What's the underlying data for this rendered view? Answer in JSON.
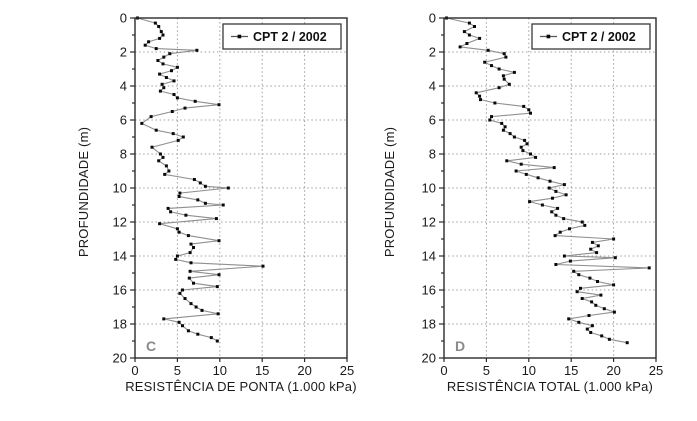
{
  "figure": {
    "background": "#ffffff",
    "description_visible_panels": [
      "C",
      "D"
    ]
  },
  "chart_data": [
    {
      "type": "line",
      "panel_label": "C",
      "legend": [
        "CPT 2 / 2002"
      ],
      "legend_position": "top-right",
      "xlabel": "RESISTÊNCIA DE PONTA (1.000 kPa)",
      "ylabel": "PROFUNDIDADE (m)",
      "xlim": [
        0,
        25
      ],
      "ylim_depth": [
        0,
        20
      ],
      "x_ticks": [
        0,
        5,
        10,
        15,
        20,
        25
      ],
      "y_ticks": [
        0,
        2,
        4,
        6,
        8,
        10,
        12,
        14,
        16,
        18,
        20
      ],
      "y_minor_ticks": [
        1,
        3,
        5,
        7,
        9,
        11,
        13,
        15,
        17,
        19
      ],
      "grid": true,
      "orientation": "depth profile, y axis inverted (0 at top)",
      "colors": {
        "line": "#8f8f8f",
        "marker": "#0a0a0a",
        "grid": "#9f9f9f",
        "axis": "#2b2b2b",
        "panel_label": "#8a8a8a"
      },
      "series": [
        {
          "name": "CPT 2 / 2002",
          "points_depth_value": [
            [
              0.0,
              0.3
            ],
            [
              0.3,
              2.4
            ],
            [
              0.5,
              2.8
            ],
            [
              0.8,
              3.1
            ],
            [
              1.0,
              3.3
            ],
            [
              1.2,
              2.9
            ],
            [
              1.4,
              1.6
            ],
            [
              1.6,
              1.2
            ],
            [
              1.8,
              2.5
            ],
            [
              1.9,
              7.3
            ],
            [
              2.1,
              4.1
            ],
            [
              2.3,
              3.4
            ],
            [
              2.5,
              2.7
            ],
            [
              2.7,
              3.3
            ],
            [
              2.9,
              5.0
            ],
            [
              3.1,
              4.3
            ],
            [
              3.3,
              2.9
            ],
            [
              3.5,
              3.7
            ],
            [
              3.7,
              4.6
            ],
            [
              3.9,
              3.2
            ],
            [
              4.1,
              3.4
            ],
            [
              4.3,
              3.0
            ],
            [
              4.5,
              4.6
            ],
            [
              4.7,
              5.0
            ],
            [
              4.9,
              7.1
            ],
            [
              5.1,
              9.9
            ],
            [
              5.3,
              5.9
            ],
            [
              5.5,
              4.4
            ],
            [
              5.8,
              1.9
            ],
            [
              6.2,
              0.8
            ],
            [
              6.6,
              2.5
            ],
            [
              6.8,
              4.5
            ],
            [
              7.0,
              5.7
            ],
            [
              7.2,
              5.1
            ],
            [
              7.6,
              2.0
            ],
            [
              8.0,
              3.0
            ],
            [
              8.2,
              3.3
            ],
            [
              8.4,
              2.8
            ],
            [
              8.7,
              3.7
            ],
            [
              9.0,
              4.0
            ],
            [
              9.2,
              3.5
            ],
            [
              9.5,
              7.0
            ],
            [
              9.7,
              7.7
            ],
            [
              9.9,
              8.3
            ],
            [
              10.0,
              11.0
            ],
            [
              10.3,
              5.3
            ],
            [
              10.5,
              5.2
            ],
            [
              10.7,
              7.4
            ],
            [
              10.9,
              8.3
            ],
            [
              11.0,
              10.4
            ],
            [
              11.2,
              3.9
            ],
            [
              11.4,
              4.2
            ],
            [
              11.6,
              6.0
            ],
            [
              11.8,
              9.6
            ],
            [
              12.1,
              2.9
            ],
            [
              12.4,
              5.0
            ],
            [
              12.6,
              5.2
            ],
            [
              12.8,
              6.3
            ],
            [
              13.1,
              9.9
            ],
            [
              13.3,
              6.6
            ],
            [
              13.5,
              6.9
            ],
            [
              13.8,
              6.5
            ],
            [
              14.0,
              5.0
            ],
            [
              14.2,
              4.8
            ],
            [
              14.4,
              6.6
            ],
            [
              14.6,
              15.1
            ],
            [
              14.9,
              6.5
            ],
            [
              15.1,
              9.9
            ],
            [
              15.3,
              6.4
            ],
            [
              15.6,
              6.9
            ],
            [
              15.8,
              9.7
            ],
            [
              16.0,
              5.6
            ],
            [
              16.2,
              5.3
            ],
            [
              16.5,
              5.9
            ],
            [
              16.8,
              6.6
            ],
            [
              17.0,
              7.2
            ],
            [
              17.2,
              7.9
            ],
            [
              17.4,
              9.8
            ],
            [
              17.7,
              3.4
            ],
            [
              17.9,
              5.2
            ],
            [
              18.1,
              5.6
            ],
            [
              18.4,
              6.3
            ],
            [
              18.6,
              7.4
            ],
            [
              18.8,
              9.0
            ],
            [
              19.0,
              9.7
            ]
          ]
        }
      ]
    },
    {
      "type": "line",
      "panel_label": "D",
      "legend": [
        "CPT 2 / 2002"
      ],
      "legend_position": "top-right",
      "xlabel": "RESISTÊNCIA TOTAL (1.000 kPa)",
      "ylabel": "PROFUNDIDADE (m)",
      "xlim": [
        0,
        25
      ],
      "ylim_depth": [
        0,
        20
      ],
      "x_ticks": [
        0,
        5,
        10,
        15,
        20,
        25
      ],
      "y_ticks": [
        0,
        2,
        4,
        6,
        8,
        10,
        12,
        14,
        16,
        18,
        20
      ],
      "y_minor_ticks": [
        1,
        3,
        5,
        7,
        9,
        11,
        13,
        15,
        17,
        19
      ],
      "grid": true,
      "orientation": "depth profile, y axis inverted (0 at top)",
      "colors": {
        "line": "#8f8f8f",
        "marker": "#0a0a0a",
        "grid": "#9f9f9f",
        "axis": "#2b2b2b",
        "panel_label": "#8a8a8a"
      },
      "series": [
        {
          "name": "CPT 2 / 2002",
          "points_depth_value": [
            [
              0.0,
              0.3
            ],
            [
              0.3,
              3.0
            ],
            [
              0.5,
              3.6
            ],
            [
              0.8,
              2.4
            ],
            [
              1.0,
              3.0
            ],
            [
              1.2,
              4.2
            ],
            [
              1.5,
              2.7
            ],
            [
              1.7,
              1.9
            ],
            [
              1.9,
              5.2
            ],
            [
              2.1,
              7.1
            ],
            [
              2.3,
              7.3
            ],
            [
              2.6,
              4.8
            ],
            [
              2.8,
              5.6
            ],
            [
              3.0,
              6.5
            ],
            [
              3.2,
              8.3
            ],
            [
              3.4,
              7.0
            ],
            [
              3.6,
              7.1
            ],
            [
              3.9,
              7.7
            ],
            [
              4.1,
              6.5
            ],
            [
              4.4,
              3.8
            ],
            [
              4.6,
              4.2
            ],
            [
              4.8,
              4.3
            ],
            [
              5.0,
              6.0
            ],
            [
              5.2,
              9.4
            ],
            [
              5.4,
              10.0
            ],
            [
              5.6,
              10.2
            ],
            [
              5.8,
              5.6
            ],
            [
              6.0,
              5.4
            ],
            [
              6.2,
              6.8
            ],
            [
              6.4,
              7.2
            ],
            [
              6.6,
              7.0
            ],
            [
              6.8,
              7.8
            ],
            [
              7.0,
              8.3
            ],
            [
              7.2,
              9.5
            ],
            [
              7.4,
              9.8
            ],
            [
              7.6,
              9.1
            ],
            [
              7.8,
              9.3
            ],
            [
              8.0,
              10.2
            ],
            [
              8.2,
              10.8
            ],
            [
              8.4,
              7.4
            ],
            [
              8.6,
              9.1
            ],
            [
              8.8,
              13.0
            ],
            [
              9.0,
              8.5
            ],
            [
              9.2,
              9.7
            ],
            [
              9.4,
              11.1
            ],
            [
              9.6,
              12.5
            ],
            [
              9.8,
              14.2
            ],
            [
              10.0,
              12.4
            ],
            [
              10.2,
              13.2
            ],
            [
              10.4,
              14.4
            ],
            [
              10.6,
              12.8
            ],
            [
              10.8,
              10.1
            ],
            [
              11.0,
              11.6
            ],
            [
              11.2,
              13.4
            ],
            [
              11.4,
              12.7
            ],
            [
              11.6,
              13.2
            ],
            [
              11.8,
              14.1
            ],
            [
              12.0,
              16.3
            ],
            [
              12.2,
              16.6
            ],
            [
              12.4,
              14.8
            ],
            [
              12.6,
              13.7
            ],
            [
              12.8,
              13.1
            ],
            [
              13.0,
              20.0
            ],
            [
              13.2,
              17.5
            ],
            [
              13.4,
              18.2
            ],
            [
              13.6,
              17.3
            ],
            [
              13.8,
              18.0
            ],
            [
              14.0,
              14.2
            ],
            [
              14.1,
              20.2
            ],
            [
              14.3,
              14.9
            ],
            [
              14.5,
              13.2
            ],
            [
              14.7,
              24.2
            ],
            [
              14.9,
              15.3
            ],
            [
              15.1,
              15.9
            ],
            [
              15.3,
              17.2
            ],
            [
              15.5,
              18.1
            ],
            [
              15.7,
              20.0
            ],
            [
              15.9,
              16.1
            ],
            [
              16.1,
              15.7
            ],
            [
              16.3,
              18.5
            ],
            [
              16.5,
              16.3
            ],
            [
              16.7,
              17.4
            ],
            [
              16.9,
              17.9
            ],
            [
              17.1,
              18.9
            ],
            [
              17.3,
              20.1
            ],
            [
              17.5,
              17.1
            ],
            [
              17.7,
              14.7
            ],
            [
              17.9,
              15.9
            ],
            [
              18.1,
              17.5
            ],
            [
              18.3,
              16.9
            ],
            [
              18.5,
              17.3
            ],
            [
              18.7,
              18.6
            ],
            [
              18.9,
              19.5
            ],
            [
              19.1,
              21.6
            ]
          ]
        }
      ]
    }
  ]
}
